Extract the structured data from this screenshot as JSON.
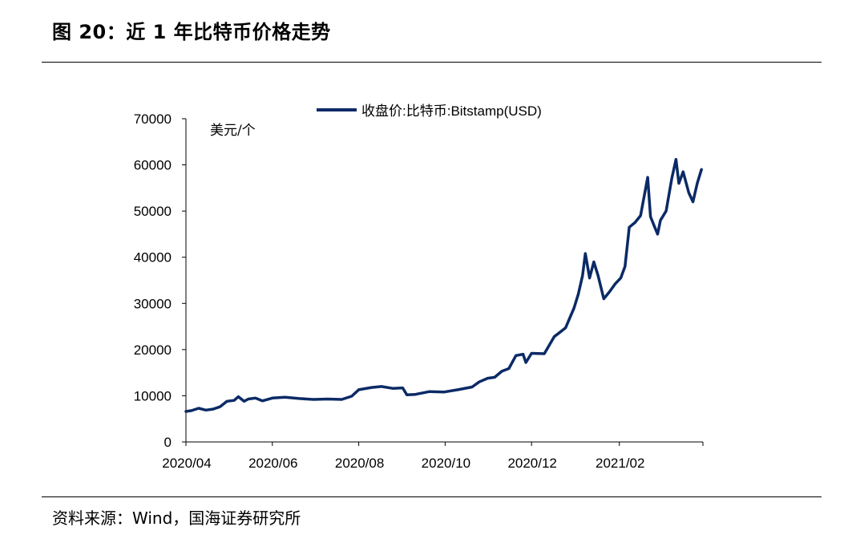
{
  "header": {
    "title": "图 20：近 1 年比特币价格走势"
  },
  "footer": {
    "source": "资料来源：Wind，国海证券研究所"
  },
  "colors": {
    "series": "#0b2a66",
    "axis": "#000000"
  },
  "chart_data": {
    "type": "line",
    "title": "",
    "xlabel": "",
    "ylabel": "美元/个",
    "ylim": [
      0,
      70000
    ],
    "yticks": [
      0,
      10000,
      20000,
      30000,
      40000,
      50000,
      60000,
      70000
    ],
    "x_tick_labels": [
      "2020/04",
      "2020/06",
      "2020/08",
      "2020/10",
      "2020/12",
      "2021/02"
    ],
    "legend_position": "top",
    "series": [
      {
        "name": "收盘价:比特币:Bitstamp(USD)",
        "x": [
          "2020-04-01",
          "2020-04-05",
          "2020-04-10",
          "2020-04-15",
          "2020-04-20",
          "2020-04-25",
          "2020-04-30",
          "2020-05-05",
          "2020-05-08",
          "2020-05-12",
          "2020-05-15",
          "2020-05-20",
          "2020-05-25",
          "2020-06-01",
          "2020-06-10",
          "2020-06-20",
          "2020-06-30",
          "2020-07-10",
          "2020-07-20",
          "2020-07-27",
          "2020-08-01",
          "2020-08-10",
          "2020-08-17",
          "2020-08-25",
          "2020-09-01",
          "2020-09-04",
          "2020-09-10",
          "2020-09-20",
          "2020-09-30",
          "2020-10-10",
          "2020-10-20",
          "2020-10-25",
          "2020-10-31",
          "2020-11-05",
          "2020-11-10",
          "2020-11-15",
          "2020-11-20",
          "2020-11-25",
          "2020-11-27",
          "2020-12-01",
          "2020-12-10",
          "2020-12-17",
          "2020-12-20",
          "2020-12-25",
          "2020-12-31",
          "2021-01-03",
          "2021-01-06",
          "2021-01-08",
          "2021-01-11",
          "2021-01-14",
          "2021-01-17",
          "2021-01-21",
          "2021-01-25",
          "2021-01-29",
          "2021-02-02",
          "2021-02-05",
          "2021-02-08",
          "2021-02-12",
          "2021-02-16",
          "2021-02-21",
          "2021-02-23",
          "2021-02-26",
          "2021-02-28",
          "2021-03-02",
          "2021-03-06",
          "2021-03-10",
          "2021-03-13",
          "2021-03-15",
          "2021-03-18",
          "2021-03-22",
          "2021-03-25",
          "2021-03-28",
          "2021-03-31"
        ],
        "values": [
          6600,
          6800,
          7300,
          6900,
          7100,
          7600,
          8800,
          9000,
          9800,
          8800,
          9300,
          9500,
          8900,
          9500,
          9700,
          9400,
          9200,
          9300,
          9200,
          9900,
          11300,
          11800,
          12000,
          11600,
          11700,
          10200,
          10300,
          10900,
          10800,
          11300,
          11900,
          13000,
          13800,
          14000,
          15300,
          15900,
          18700,
          19000,
          17200,
          19200,
          19100,
          22800,
          23500,
          24700,
          29000,
          32000,
          36000,
          40800,
          35500,
          39000,
          36000,
          31000,
          32500,
          34200,
          35500,
          38000,
          46500,
          47500,
          49000,
          57300,
          48800,
          46500,
          45000,
          48000,
          50000,
          57000,
          61200,
          56000,
          58500,
          54000,
          52000,
          56000,
          59000
        ]
      }
    ]
  }
}
